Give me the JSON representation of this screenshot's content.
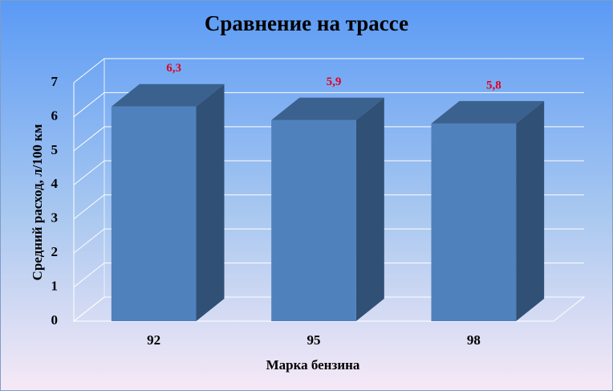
{
  "chart_data": {
    "type": "bar3d",
    "title": "Сравнение на трассе",
    "xlabel": "Марка бензина",
    "ylabel": "Средний расход, л/100 км",
    "categories": [
      "92",
      "95",
      "98"
    ],
    "values": [
      6.3,
      5.9,
      5.8
    ],
    "value_labels": [
      "6,3",
      "5,9",
      "5,8"
    ],
    "color": "#4f81bd",
    "value_label_color": "#e00020",
    "ylim": [
      0,
      7
    ],
    "yticks": [
      0,
      1,
      2,
      3,
      4,
      5,
      6,
      7
    ],
    "grid": true
  }
}
